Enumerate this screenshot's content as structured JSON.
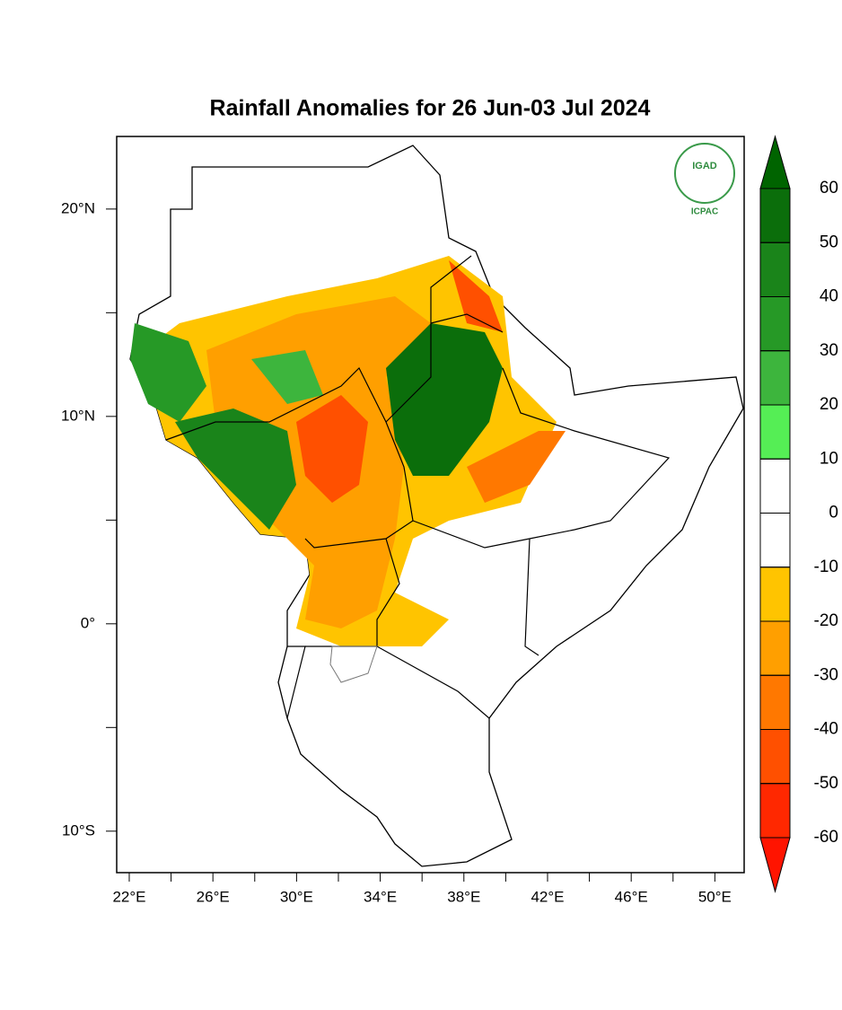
{
  "title": "Rainfall Anomalies for 26 Jun-03 Jul 2024",
  "map": {
    "xlim": [
      21.4,
      51.4
    ],
    "ylim": [
      -12,
      23.5
    ],
    "xticks": [
      {
        "value": 22,
        "label": "22°E"
      },
      {
        "value": 26,
        "label": "26°E"
      },
      {
        "value": 30,
        "label": "30°E"
      },
      {
        "value": 34,
        "label": "34°E"
      },
      {
        "value": 38,
        "label": "38°E"
      },
      {
        "value": 42,
        "label": "42°E"
      },
      {
        "value": 46,
        "label": "46°E"
      },
      {
        "value": 50,
        "label": "50°E"
      }
    ],
    "yticks": [
      {
        "value": 20,
        "label": "20°N"
      },
      {
        "value": 10,
        "label": "10°N"
      },
      {
        "value": 0,
        "label": "0°"
      },
      {
        "value": -10,
        "label": "10°S"
      }
    ]
  },
  "colorbar": {
    "ticks": [
      60,
      50,
      40,
      30,
      20,
      10,
      0,
      -10,
      -20,
      -30,
      -40,
      -50,
      -60
    ],
    "colors": [
      "#006400",
      "#0b6e0b",
      "#1a841a",
      "#269926",
      "#3db53d",
      "#55ee55",
      "#ffffff",
      "#ffffff",
      "#ffc400",
      "#ff9f00",
      "#ff7800",
      "#ff5000",
      "#ff2800",
      "#ff1400"
    ]
  },
  "logo": {
    "top": "IGAD",
    "bottom": "ICPAC"
  }
}
